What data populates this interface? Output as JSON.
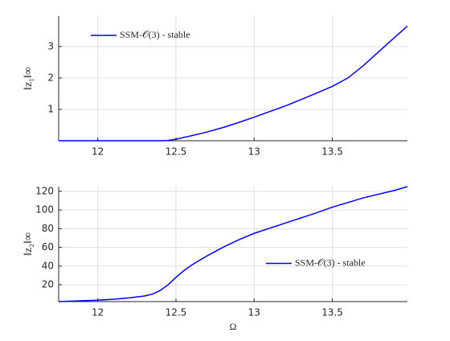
{
  "chart_data": [
    {
      "type": "line",
      "ylabel": "‖z₁‖∞",
      "x": [
        11.75,
        12.0,
        12.2,
        12.4,
        12.45,
        12.5,
        12.6,
        12.7,
        12.8,
        12.9,
        13.0,
        13.1,
        13.2,
        13.3,
        13.4,
        13.5,
        13.6,
        13.7,
        13.8,
        13.9,
        13.98
      ],
      "series": [
        {
          "name": "SSM-𝒪(3) - stable",
          "color": "#0000ff",
          "values": [
            0.0,
            0.0,
            0.0,
            0.0,
            0.01,
            0.05,
            0.16,
            0.28,
            0.42,
            0.58,
            0.75,
            0.93,
            1.11,
            1.31,
            1.52,
            1.73,
            2.0,
            2.4,
            2.85,
            3.3,
            3.65
          ]
        }
      ],
      "xlim": [
        11.75,
        13.98
      ],
      "xticks": [
        12,
        12.5,
        13,
        13.5
      ],
      "ylim": [
        0,
        3.97
      ],
      "yticks": [
        1,
        2,
        3
      ],
      "grid": true,
      "legend": "upper left"
    },
    {
      "type": "line",
      "ylabel": "‖z₂‖∞",
      "xlabel": "Ω",
      "x": [
        11.75,
        12.0,
        12.1,
        12.2,
        12.3,
        12.35,
        12.4,
        12.45,
        12.5,
        12.55,
        12.6,
        12.7,
        12.8,
        12.9,
        13.0,
        13.2,
        13.4,
        13.5,
        13.7,
        13.9,
        13.98
      ],
      "series": [
        {
          "name": "SSM-𝒪(3) - stable",
          "color": "#0000ff",
          "values": [
            2,
            3.5,
            4.5,
            6,
            8,
            10,
            14,
            20,
            28,
            35,
            41,
            51,
            60,
            68,
            75,
            86,
            97,
            103,
            113,
            121,
            125
          ]
        }
      ],
      "xlim": [
        11.75,
        13.98
      ],
      "xticks": [
        12,
        12.5,
        13,
        13.5
      ],
      "ylim": [
        2,
        125
      ],
      "yticks": [
        20,
        40,
        60,
        80,
        100,
        120
      ],
      "grid": true,
      "legend": "center right"
    }
  ]
}
